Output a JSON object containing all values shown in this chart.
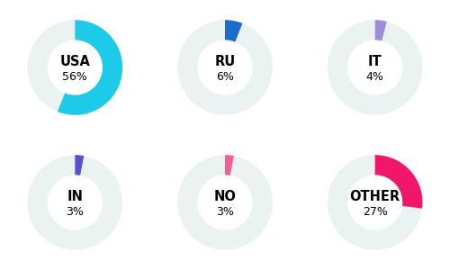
{
  "charts": [
    {
      "label": "USA",
      "value": 56,
      "color": "#1DCBE9"
    },
    {
      "label": "RU",
      "value": 6,
      "color": "#1A6BCC"
    },
    {
      "label": "IT",
      "value": 4,
      "color": "#9B8EDB"
    },
    {
      "label": "IN",
      "value": 3,
      "color": "#5B4FCF"
    },
    {
      "label": "NO",
      "value": 3,
      "color": "#F06090"
    },
    {
      "label": "OTHER",
      "value": 27,
      "color": "#F0176A"
    }
  ],
  "bg_color": "#FFFFFF",
  "ring_bg_color": "#EBF2F2",
  "text_color": "#000000",
  "label_fontsize": 10.5,
  "value_fontsize": 9.0,
  "figsize": [
    5.0,
    3.0
  ],
  "dpi": 100,
  "grid_rows": 2,
  "grid_cols": 3,
  "outer_r": 1.0,
  "inner_r": 0.58
}
